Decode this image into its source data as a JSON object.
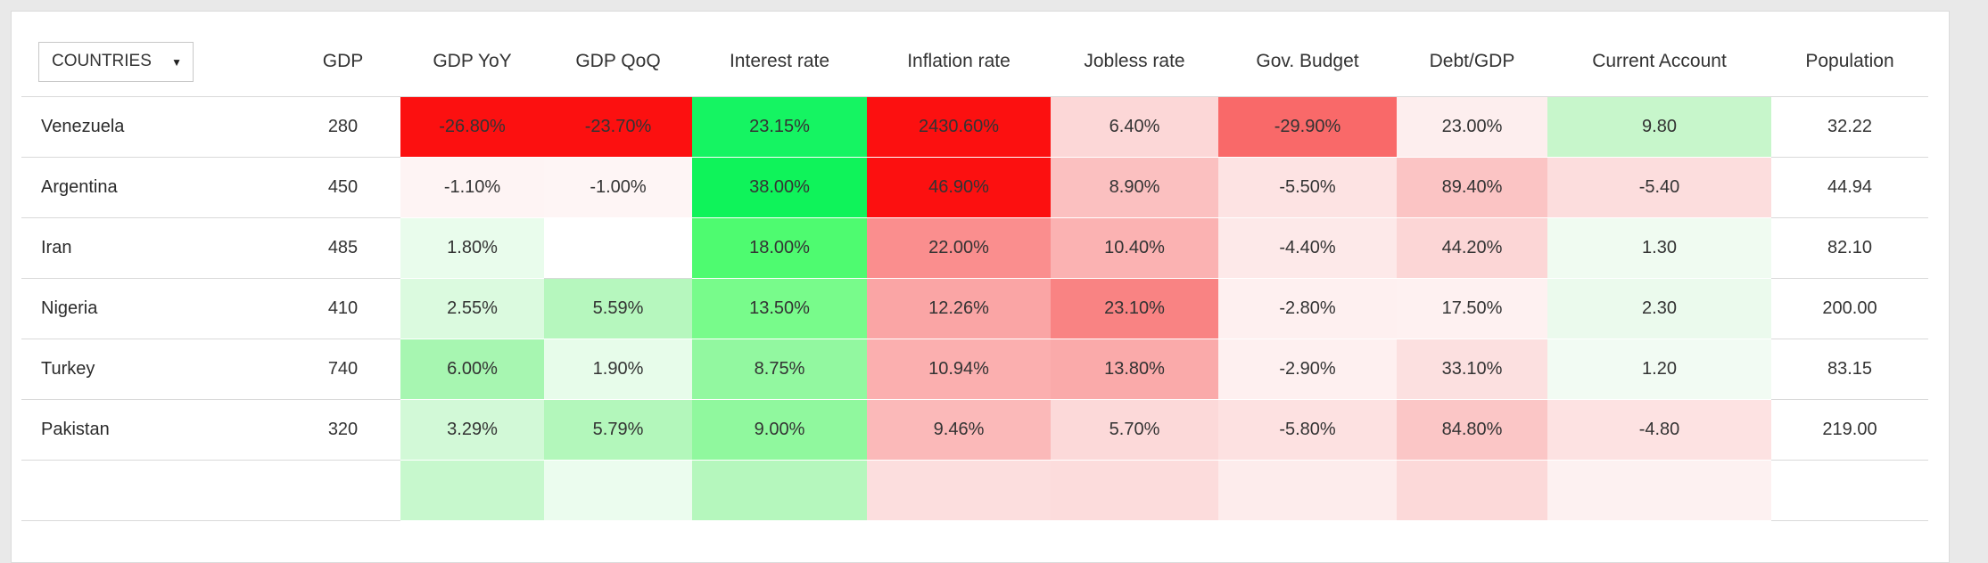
{
  "page": {
    "background_color": "#e9e9e9",
    "card_background": "#ffffff",
    "row_border_color": "#d9d9d9",
    "full_red": "#fc1010",
    "full_green": "#15f462"
  },
  "dropdown": {
    "label": "COUNTRIES",
    "caret": "▼"
  },
  "table": {
    "columns": [
      {
        "key": "gdp",
        "label": "GDP"
      },
      {
        "key": "gdp-yoy",
        "label": "GDP YoY"
      },
      {
        "key": "gdp-qoq",
        "label": "GDP QoQ"
      },
      {
        "key": "interest-rate",
        "label": "Interest rate"
      },
      {
        "key": "inflation-rate",
        "label": "Inflation rate"
      },
      {
        "key": "jobless-rate",
        "label": "Jobless rate"
      },
      {
        "key": "gov-budget",
        "label": "Gov. Budget"
      },
      {
        "key": "debt-gdp",
        "label": "Debt/GDP"
      },
      {
        "key": "current-account",
        "label": "Current Account"
      },
      {
        "key": "population",
        "label": "Population"
      }
    ],
    "rows": [
      {
        "country": "Venezuela",
        "cells": [
          {
            "text": "280",
            "bg": "#ffffff"
          },
          {
            "text": "-26.80%",
            "bg": "#fc1010"
          },
          {
            "text": "-23.70%",
            "bg": "#fc1010"
          },
          {
            "text": "23.15%",
            "bg": "#15f462"
          },
          {
            "text": "2430.60%",
            "bg": "#fc1010"
          },
          {
            "text": "6.40%",
            "bg": "#fcd7d7"
          },
          {
            "text": "-29.90%",
            "bg": "#f96969"
          },
          {
            "text": "23.00%",
            "bg": "#fdeeee"
          },
          {
            "text": "9.80",
            "bg": "#c7f6cb"
          },
          {
            "text": "32.22",
            "bg": "#ffffff"
          }
        ]
      },
      {
        "country": "Argentina",
        "cells": [
          {
            "text": "450",
            "bg": "#ffffff"
          },
          {
            "text": "-1.10%",
            "bg": "#fef4f4"
          },
          {
            "text": "-1.00%",
            "bg": "#fef5f5"
          },
          {
            "text": "38.00%",
            "bg": "#0ff35a"
          },
          {
            "text": "46.90%",
            "bg": "#fc1010"
          },
          {
            "text": "8.90%",
            "bg": "#fbc0c0"
          },
          {
            "text": "-5.50%",
            "bg": "#fde3e3"
          },
          {
            "text": "89.40%",
            "bg": "#fbc4c4"
          },
          {
            "text": "-5.40",
            "bg": "#fcdddd"
          },
          {
            "text": "44.94",
            "bg": "#ffffff"
          }
        ]
      },
      {
        "country": "Iran",
        "cells": [
          {
            "text": "485",
            "bg": "#ffffff"
          },
          {
            "text": "1.80%",
            "bg": "#e9fcec"
          },
          {
            "text": "",
            "bg": "#ffffff"
          },
          {
            "text": "18.00%",
            "bg": "#4efb70"
          },
          {
            "text": "22.00%",
            "bg": "#fa8e8e"
          },
          {
            "text": "10.40%",
            "bg": "#fbb2b2"
          },
          {
            "text": "-4.40%",
            "bg": "#fde9e9"
          },
          {
            "text": "44.20%",
            "bg": "#fcd6d6"
          },
          {
            "text": "1.30",
            "bg": "#f0fbf1"
          },
          {
            "text": "82.10",
            "bg": "#ffffff"
          }
        ]
      },
      {
        "country": "Nigeria",
        "cells": [
          {
            "text": "410",
            "bg": "#ffffff"
          },
          {
            "text": "2.55%",
            "bg": "#dbfadf"
          },
          {
            "text": "5.59%",
            "bg": "#b6f7be"
          },
          {
            "text": "13.50%",
            "bg": "#78fb8b"
          },
          {
            "text": "12.26%",
            "bg": "#faa5a5"
          },
          {
            "text": "23.10%",
            "bg": "#f98383"
          },
          {
            "text": "-2.80%",
            "bg": "#fef0f0"
          },
          {
            "text": "17.50%",
            "bg": "#fef1f1"
          },
          {
            "text": "2.30",
            "bg": "#ebfaed"
          },
          {
            "text": "200.00",
            "bg": "#ffffff"
          }
        ]
      },
      {
        "country": "Turkey",
        "cells": [
          {
            "text": "740",
            "bg": "#ffffff"
          },
          {
            "text": "6.00%",
            "bg": "#a7f6b1"
          },
          {
            "text": "1.90%",
            "bg": "#e7fcea"
          },
          {
            "text": "8.75%",
            "bg": "#92f8a0"
          },
          {
            "text": "10.94%",
            "bg": "#fbafaf"
          },
          {
            "text": "13.80%",
            "bg": "#faaaaa"
          },
          {
            "text": "-2.90%",
            "bg": "#fef0f0"
          },
          {
            "text": "33.10%",
            "bg": "#fce0e0"
          },
          {
            "text": "1.20",
            "bg": "#f2fbf3"
          },
          {
            "text": "83.15",
            "bg": "#ffffff"
          }
        ]
      },
      {
        "country": "Pakistan",
        "cells": [
          {
            "text": "320",
            "bg": "#ffffff"
          },
          {
            "text": "3.29%",
            "bg": "#d2f9d7"
          },
          {
            "text": "5.79%",
            "bg": "#b3f7bb"
          },
          {
            "text": "9.00%",
            "bg": "#90f89e"
          },
          {
            "text": "9.46%",
            "bg": "#fbb9b9"
          },
          {
            "text": "5.70%",
            "bg": "#fcd9d9"
          },
          {
            "text": "-5.80%",
            "bg": "#fde1e1"
          },
          {
            "text": "84.80%",
            "bg": "#fbc6c6"
          },
          {
            "text": "-4.80",
            "bg": "#fde2e2"
          },
          {
            "text": "219.00",
            "bg": "#ffffff"
          }
        ]
      },
      {
        "country": "",
        "cells": [
          {
            "text": "",
            "bg": "#ffffff"
          },
          {
            "text": "",
            "bg": "#c7f8cd"
          },
          {
            "text": "",
            "bg": "#ebfcee"
          },
          {
            "text": "",
            "bg": "#b5f7bd"
          },
          {
            "text": "",
            "bg": "#fcdede"
          },
          {
            "text": "",
            "bg": "#fcdcdc"
          },
          {
            "text": "",
            "bg": "#fdecec"
          },
          {
            "text": "",
            "bg": "#fcd9d9"
          },
          {
            "text": "",
            "bg": "#fdf1f1"
          },
          {
            "text": "",
            "bg": "#ffffff"
          }
        ]
      }
    ]
  }
}
